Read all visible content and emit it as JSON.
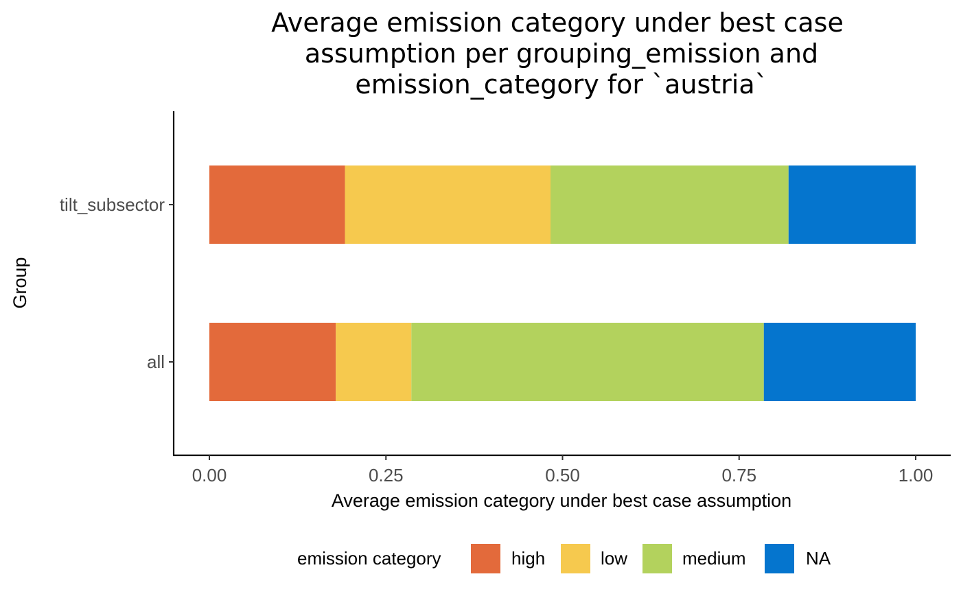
{
  "chart_data": {
    "type": "bar",
    "orientation": "horizontal",
    "stacked": true,
    "title_lines": [
      "Average emission category under best case",
      "assumption per grouping_emission and",
      "emission_category for `austria`"
    ],
    "xlabel": "Average emission category under best case assumption",
    "ylabel": "Group",
    "xlim": [
      0,
      1
    ],
    "xticks": [
      "0.00",
      "0.25",
      "0.50",
      "0.75",
      "1.00"
    ],
    "categories": [
      "tilt_subsector",
      "all"
    ],
    "series": [
      {
        "name": "high",
        "color": "#E36A3B",
        "values": [
          0.192,
          0.179
        ]
      },
      {
        "name": "low",
        "color": "#F6C94E",
        "values": [
          0.291,
          0.107
        ]
      },
      {
        "name": "medium",
        "color": "#B3D25D",
        "values": [
          0.337,
          0.499
        ]
      },
      {
        "name": "NA",
        "color": "#0575CE",
        "values": [
          0.18,
          0.215
        ]
      }
    ],
    "legend": {
      "title": "emission category",
      "position": "bottom"
    },
    "grid": false
  }
}
